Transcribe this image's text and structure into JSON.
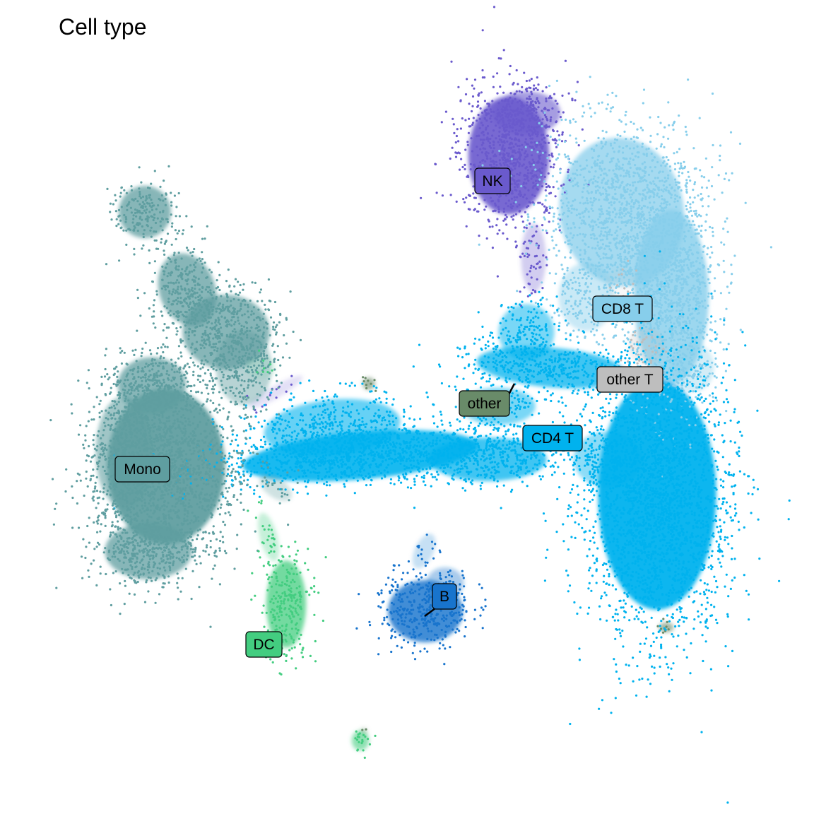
{
  "chart_data": {
    "type": "scatter",
    "title": "Cell type",
    "xlabel": "",
    "ylabel": "",
    "axes": "none",
    "grid": false,
    "legend": "none (direct cluster labels)",
    "clusters": [
      {
        "name": "NK",
        "color": "#6A5ACD"
      },
      {
        "name": "CD8 T",
        "color": "#87CEEB"
      },
      {
        "name": "other T",
        "color": "#BEBEBE"
      },
      {
        "name": "other",
        "color": "#698B69"
      },
      {
        "name": "CD4 T",
        "color": "#00B2EE"
      },
      {
        "name": "Mono",
        "color": "#5F9EA0"
      },
      {
        "name": "B",
        "color": "#1874CD"
      },
      {
        "name": "DC",
        "color": "#43CD80"
      }
    ]
  }
}
